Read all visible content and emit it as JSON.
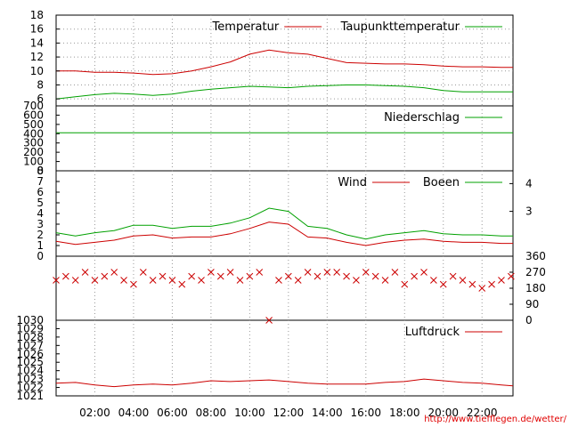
{
  "chart_data": [
    {
      "type": "line",
      "legend_position": "top-right",
      "ylim": [
        5,
        18
      ],
      "yticks": [
        "6",
        "8",
        "10",
        "12",
        "14",
        "16",
        "18"
      ],
      "grid": true,
      "series": [
        {
          "name": "Temperatur",
          "color": "#cc0000",
          "x": [
            0,
            1,
            2,
            3,
            4,
            5,
            6,
            7,
            8,
            9,
            10,
            11,
            12,
            13,
            14,
            15,
            16,
            17,
            18,
            19,
            20,
            21,
            22,
            23,
            23.6
          ],
          "values": [
            10.0,
            10.0,
            9.8,
            9.8,
            9.7,
            9.5,
            9.6,
            10.0,
            10.6,
            11.3,
            12.4,
            13.0,
            12.6,
            12.4,
            11.8,
            11.2,
            11.1,
            11.0,
            11.0,
            10.9,
            10.7,
            10.6,
            10.6,
            10.5,
            10.5
          ]
        },
        {
          "name": "Taupunkttemperatur",
          "color": "#00a000",
          "x": [
            0,
            1,
            2,
            3,
            4,
            5,
            6,
            7,
            8,
            9,
            10,
            11,
            12,
            13,
            14,
            15,
            16,
            17,
            18,
            19,
            20,
            21,
            22,
            23,
            23.6
          ],
          "values": [
            6.0,
            6.3,
            6.6,
            6.8,
            6.7,
            6.5,
            6.7,
            7.1,
            7.4,
            7.6,
            7.8,
            7.7,
            7.6,
            7.8,
            7.9,
            8.0,
            8.0,
            7.9,
            7.8,
            7.6,
            7.2,
            7.0,
            7.0,
            7.0,
            7.0
          ]
        }
      ]
    },
    {
      "type": "line",
      "legend_position": "top-right",
      "ylim": [
        0,
        700
      ],
      "yticks": [
        "0",
        "100",
        "200",
        "300",
        "400",
        "500",
        "600",
        "700"
      ],
      "series": [
        {
          "name": "Niederschlag",
          "color": "#00a000",
          "x": [
            0,
            23.6
          ],
          "values": [
            410,
            410
          ]
        }
      ]
    },
    {
      "type": "line",
      "legend_position": "top-right",
      "ylim": [
        0,
        8
      ],
      "yticks": [
        "0",
        "1",
        "2",
        "3",
        "4",
        "5",
        "6",
        "7",
        "8"
      ],
      "yticks_right": [
        "3",
        "4"
      ],
      "series": [
        {
          "name": "Wind",
          "color": "#cc0000",
          "x": [
            0,
            1,
            2,
            3,
            4,
            5,
            6,
            7,
            8,
            9,
            10,
            11,
            12,
            13,
            14,
            15,
            16,
            17,
            18,
            19,
            20,
            21,
            22,
            23,
            23.6
          ],
          "values": [
            1.4,
            1.1,
            1.3,
            1.5,
            1.9,
            2.0,
            1.7,
            1.8,
            1.8,
            2.1,
            2.6,
            3.2,
            3.0,
            1.8,
            1.7,
            1.3,
            1.0,
            1.3,
            1.5,
            1.6,
            1.4,
            1.3,
            1.3,
            1.2,
            1.2
          ]
        },
        {
          "name": "Boeen",
          "color": "#00a000",
          "x": [
            0,
            1,
            2,
            3,
            4,
            5,
            6,
            7,
            8,
            9,
            10,
            11,
            12,
            13,
            14,
            15,
            16,
            17,
            18,
            19,
            20,
            21,
            22,
            23,
            23.6
          ],
          "values": [
            2.2,
            1.9,
            2.2,
            2.4,
            2.9,
            2.9,
            2.6,
            2.8,
            2.8,
            3.1,
            3.6,
            4.5,
            4.2,
            2.8,
            2.6,
            2.0,
            1.6,
            2.0,
            2.2,
            2.4,
            2.1,
            2.0,
            2.0,
            1.9,
            1.9
          ]
        }
      ]
    },
    {
      "type": "scatter",
      "ylim": [
        0,
        360
      ],
      "yticks_right": [
        "0",
        "90",
        "180",
        "270",
        "360"
      ],
      "marker": "x",
      "color": "#cc0000",
      "x": [
        0,
        0.5,
        1,
        1.5,
        2,
        2.5,
        3,
        3.5,
        4,
        4.5,
        5,
        5.5,
        6,
        6.5,
        7,
        7.5,
        8,
        8.5,
        9,
        9.5,
        10,
        10.5,
        11,
        11.5,
        12,
        12.5,
        13,
        13.5,
        14,
        14.5,
        15,
        15.5,
        16,
        16.5,
        17,
        17.5,
        18,
        18.5,
        19,
        19.5,
        20,
        20.5,
        21,
        21.5,
        22,
        22.5,
        23,
        23.5
      ],
      "values": [
        225,
        247,
        225,
        270,
        225,
        247,
        270,
        225,
        202,
        270,
        225,
        247,
        225,
        202,
        247,
        225,
        270,
        247,
        270,
        225,
        247,
        270,
        0,
        225,
        247,
        225,
        270,
        247,
        270,
        270,
        247,
        225,
        270,
        247,
        225,
        270,
        202,
        247,
        270,
        225,
        202,
        247,
        225,
        202,
        180,
        202,
        225,
        247
      ]
    },
    {
      "type": "line",
      "legend_position": "top-right",
      "ylim": [
        1021,
        1030
      ],
      "yticks": [
        "1021",
        "1022",
        "1023",
        "1024",
        "1025",
        "1026",
        "1027",
        "1028",
        "1029",
        "1030"
      ],
      "series": [
        {
          "name": "Luftdruck",
          "color": "#cc0000",
          "x": [
            0,
            1,
            2,
            3,
            4,
            5,
            6,
            7,
            8,
            9,
            10,
            11,
            12,
            13,
            14,
            15,
            16,
            17,
            18,
            19,
            20,
            21,
            22,
            23,
            23.6
          ],
          "values": [
            1022.5,
            1022.6,
            1022.3,
            1022.1,
            1022.3,
            1022.4,
            1022.3,
            1022.5,
            1022.8,
            1022.7,
            1022.8,
            1022.9,
            1022.7,
            1022.5,
            1022.4,
            1022.4,
            1022.4,
            1022.6,
            1022.7,
            1023.0,
            1022.8,
            1022.6,
            1022.5,
            1022.3,
            1022.2
          ]
        }
      ]
    }
  ],
  "x_axis": {
    "min": 0,
    "max": 23.6,
    "tick_values": [
      2,
      4,
      6,
      8,
      10,
      12,
      14,
      16,
      18,
      20,
      22
    ],
    "tick_labels": [
      "02:00",
      "04:00",
      "06:00",
      "08:00",
      "10:00",
      "12:00",
      "14:00",
      "16:00",
      "18:00",
      "20:00",
      "22:00"
    ]
  },
  "credit": "http://www.tiefflegen.de/wetter/"
}
